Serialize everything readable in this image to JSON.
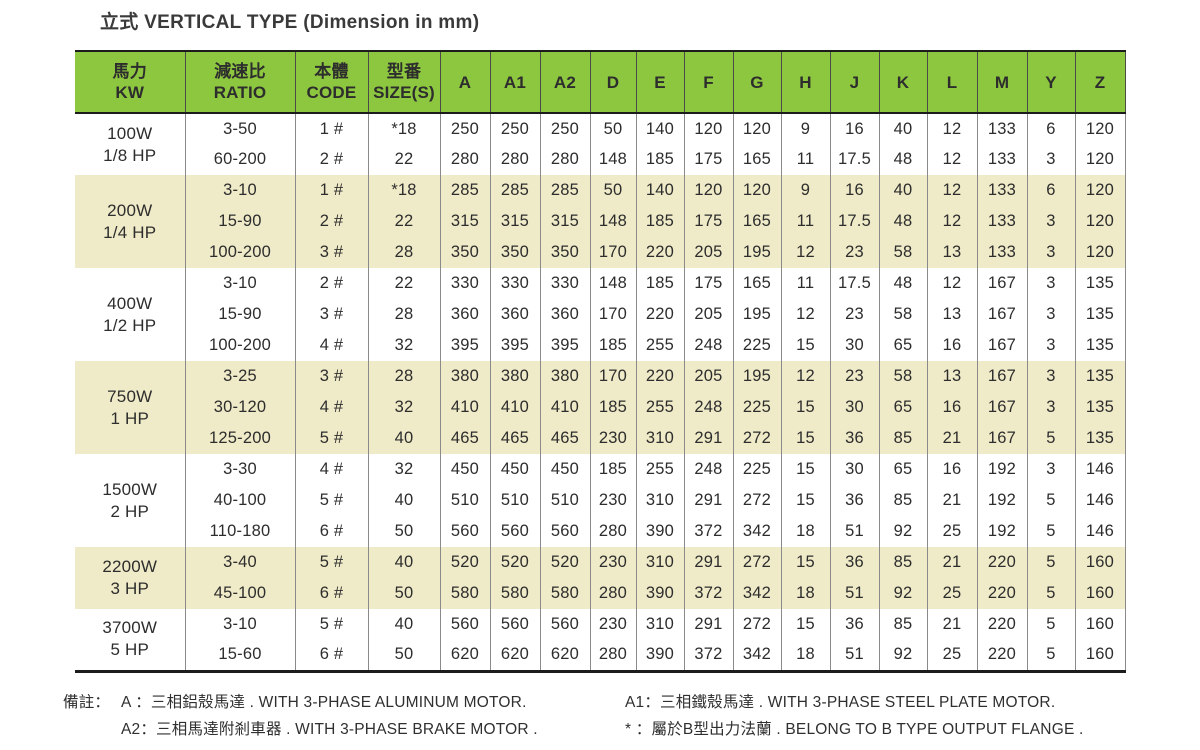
{
  "title": "立式 VERTICAL TYPE (Dimension in mm)",
  "colors": {
    "header_bg": "#8dc63f",
    "shaded_row_bg": "#efeac7",
    "text": "#2d2d2d"
  },
  "table": {
    "col_headers": [
      {
        "zh": "馬力",
        "en": "KW"
      },
      {
        "zh": "減速比",
        "en": "RATIO"
      },
      {
        "zh": "本體",
        "en": "CODE"
      },
      {
        "zh": "型番",
        "en": "SIZE(S)"
      },
      {
        "label": "A"
      },
      {
        "label": "A1"
      },
      {
        "label": "A2"
      },
      {
        "label": "D"
      },
      {
        "label": "E"
      },
      {
        "label": "F"
      },
      {
        "label": "G"
      },
      {
        "label": "H"
      },
      {
        "label": "J"
      },
      {
        "label": "K"
      },
      {
        "label": "L"
      },
      {
        "label": "M"
      },
      {
        "label": "Y"
      },
      {
        "label": "Z"
      }
    ],
    "groups": [
      {
        "power_w": "100W",
        "power_hp": "1/8 HP",
        "shaded": false,
        "rows": [
          [
            "3-50",
            "1 #",
            "*18",
            "250",
            "250",
            "250",
            "50",
            "140",
            "120",
            "120",
            "9",
            "16",
            "40",
            "12",
            "133",
            "6",
            "120"
          ],
          [
            "60-200",
            "2 #",
            "22",
            "280",
            "280",
            "280",
            "148",
            "185",
            "175",
            "165",
            "11",
            "17.5",
            "48",
            "12",
            "133",
            "3",
            "120"
          ]
        ]
      },
      {
        "power_w": "200W",
        "power_hp": "1/4 HP",
        "shaded": true,
        "rows": [
          [
            "3-10",
            "1 #",
            "*18",
            "285",
            "285",
            "285",
            "50",
            "140",
            "120",
            "120",
            "9",
            "16",
            "40",
            "12",
            "133",
            "6",
            "120"
          ],
          [
            "15-90",
            "2 #",
            "22",
            "315",
            "315",
            "315",
            "148",
            "185",
            "175",
            "165",
            "11",
            "17.5",
            "48",
            "12",
            "133",
            "3",
            "120"
          ],
          [
            "100-200",
            "3 #",
            "28",
            "350",
            "350",
            "350",
            "170",
            "220",
            "205",
            "195",
            "12",
            "23",
            "58",
            "13",
            "133",
            "3",
            "120"
          ]
        ]
      },
      {
        "power_w": "400W",
        "power_hp": "1/2 HP",
        "shaded": false,
        "rows": [
          [
            "3-10",
            "2 #",
            "22",
            "330",
            "330",
            "330",
            "148",
            "185",
            "175",
            "165",
            "11",
            "17.5",
            "48",
            "12",
            "167",
            "3",
            "135"
          ],
          [
            "15-90",
            "3 #",
            "28",
            "360",
            "360",
            "360",
            "170",
            "220",
            "205",
            "195",
            "12",
            "23",
            "58",
            "13",
            "167",
            "3",
            "135"
          ],
          [
            "100-200",
            "4 #",
            "32",
            "395",
            "395",
            "395",
            "185",
            "255",
            "248",
            "225",
            "15",
            "30",
            "65",
            "16",
            "167",
            "3",
            "135"
          ]
        ]
      },
      {
        "power_w": "750W",
        "power_hp": "1 HP",
        "shaded": true,
        "rows": [
          [
            "3-25",
            "3 #",
            "28",
            "380",
            "380",
            "380",
            "170",
            "220",
            "205",
            "195",
            "12",
            "23",
            "58",
            "13",
            "167",
            "3",
            "135"
          ],
          [
            "30-120",
            "4 #",
            "32",
            "410",
            "410",
            "410",
            "185",
            "255",
            "248",
            "225",
            "15",
            "30",
            "65",
            "16",
            "167",
            "3",
            "135"
          ],
          [
            "125-200",
            "5 #",
            "40",
            "465",
            "465",
            "465",
            "230",
            "310",
            "291",
            "272",
            "15",
            "36",
            "85",
            "21",
            "167",
            "5",
            "135"
          ]
        ]
      },
      {
        "power_w": "1500W",
        "power_hp": "2 HP",
        "shaded": false,
        "rows": [
          [
            "3-30",
            "4 #",
            "32",
            "450",
            "450",
            "450",
            "185",
            "255",
            "248",
            "225",
            "15",
            "30",
            "65",
            "16",
            "192",
            "3",
            "146"
          ],
          [
            "40-100",
            "5 #",
            "40",
            "510",
            "510",
            "510",
            "230",
            "310",
            "291",
            "272",
            "15",
            "36",
            "85",
            "21",
            "192",
            "5",
            "146"
          ],
          [
            "110-180",
            "6 #",
            "50",
            "560",
            "560",
            "560",
            "280",
            "390",
            "372",
            "342",
            "18",
            "51",
            "92",
            "25",
            "192",
            "5",
            "146"
          ]
        ]
      },
      {
        "power_w": "2200W",
        "power_hp": "3 HP",
        "shaded": true,
        "rows": [
          [
            "3-40",
            "5 #",
            "40",
            "520",
            "520",
            "520",
            "230",
            "310",
            "291",
            "272",
            "15",
            "36",
            "85",
            "21",
            "220",
            "5",
            "160"
          ],
          [
            "45-100",
            "6 #",
            "50",
            "580",
            "580",
            "580",
            "280",
            "390",
            "372",
            "342",
            "18",
            "51",
            "92",
            "25",
            "220",
            "5",
            "160"
          ]
        ]
      },
      {
        "power_w": "3700W",
        "power_hp": "5 HP",
        "shaded": false,
        "rows": [
          [
            "3-10",
            "5 #",
            "40",
            "560",
            "560",
            "560",
            "230",
            "310",
            "291",
            "272",
            "15",
            "36",
            "85",
            "21",
            "220",
            "5",
            "160"
          ],
          [
            "15-60",
            "6 #",
            "50",
            "620",
            "620",
            "620",
            "280",
            "390",
            "372",
            "342",
            "18",
            "51",
            "92",
            "25",
            "220",
            "5",
            "160"
          ]
        ]
      }
    ]
  },
  "notes": {
    "label": "備註：",
    "note_a": "A  ：三相鋁殼馬達 . WITH 3-PHASE ALUMINUM MOTOR.",
    "note_a1": "A1：三相鐵殼馬達 . WITH 3-PHASE STEEL PLATE MOTOR.",
    "note_a2": "A2：三相馬達附剎車器 . WITH 3-PHASE BRAKE MOTOR .",
    "note_star": "*  ：屬於B型出力法蘭 . BELONG TO  B  TYPE OUTPUT FLANGE ."
  }
}
